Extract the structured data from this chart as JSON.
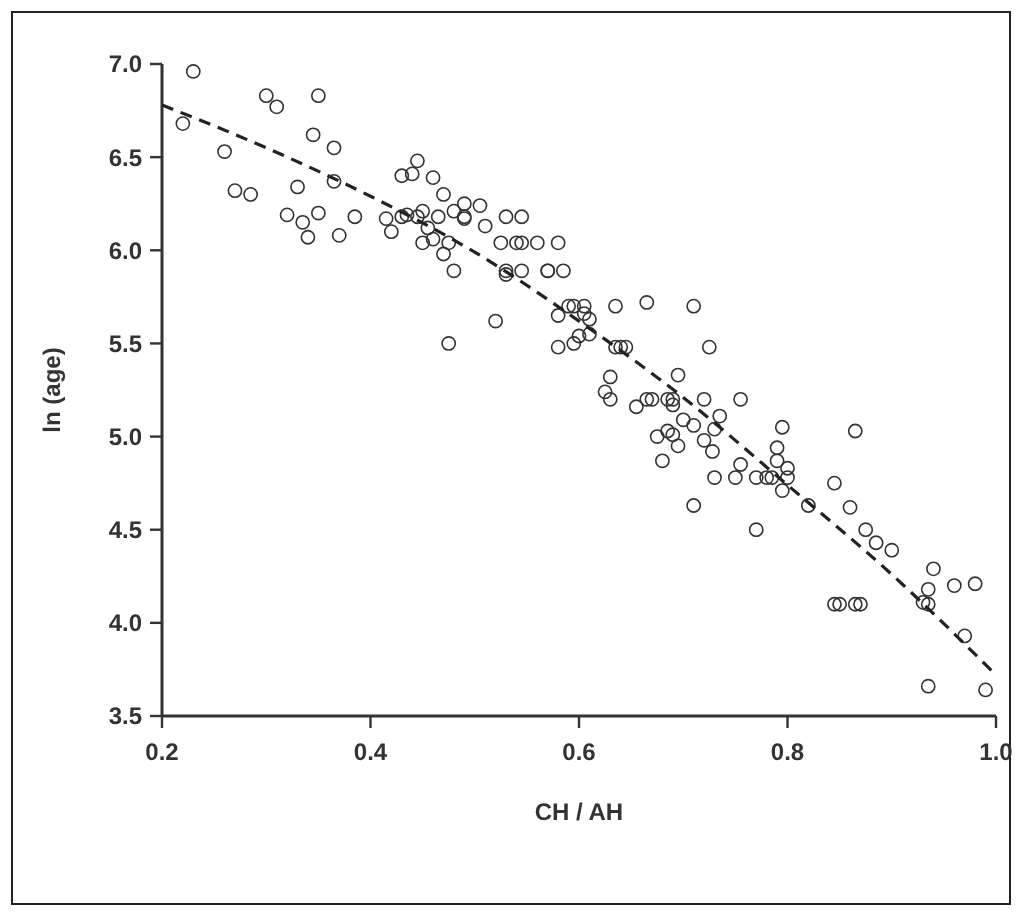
{
  "chart_data": {
    "type": "scatter",
    "xlabel": "CH / AH",
    "ylabel": "ln (age)",
    "xlim": [
      0.2,
      1.0
    ],
    "ylim": [
      3.5,
      7.0
    ],
    "xticks": [
      {
        "value": 0.2,
        "label": "0.2"
      },
      {
        "value": 0.4,
        "label": "0.4"
      },
      {
        "value": 0.6,
        "label": "0.6"
      },
      {
        "value": 0.8,
        "label": "0.8"
      },
      {
        "value": 1.0,
        "label": "1.0"
      }
    ],
    "yticks": [
      {
        "value": 3.5,
        "label": "3.5"
      },
      {
        "value": 4.0,
        "label": "4.0"
      },
      {
        "value": 4.5,
        "label": "4.5"
      },
      {
        "value": 5.0,
        "label": "5.0"
      },
      {
        "value": 5.5,
        "label": "5.5"
      },
      {
        "value": 6.0,
        "label": "6.0"
      },
      {
        "value": 6.5,
        "label": "6.5"
      },
      {
        "value": 7.0,
        "label": "7.0"
      }
    ],
    "grid": false,
    "series": [
      {
        "marker": "circle",
        "color": "#333333",
        "x": [
          0.22,
          0.23,
          0.26,
          0.27,
          0.285,
          0.3,
          0.31,
          0.32,
          0.33,
          0.335,
          0.34,
          0.345,
          0.35,
          0.35,
          0.365,
          0.365,
          0.37,
          0.385,
          0.415,
          0.42,
          0.43,
          0.43,
          0.435,
          0.44,
          0.445,
          0.445,
          0.45,
          0.45,
          0.455,
          0.46,
          0.46,
          0.465,
          0.47,
          0.47,
          0.475,
          0.475,
          0.48,
          0.48,
          0.49,
          0.49,
          0.49,
          0.505,
          0.51,
          0.52,
          0.525,
          0.53,
          0.53,
          0.53,
          0.54,
          0.545,
          0.545,
          0.545,
          0.56,
          0.57,
          0.57,
          0.58,
          0.58,
          0.58,
          0.585,
          0.59,
          0.595,
          0.595,
          0.6,
          0.605,
          0.605,
          0.61,
          0.61,
          0.625,
          0.63,
          0.63,
          0.635,
          0.635,
          0.64,
          0.645,
          0.655,
          0.665,
          0.665,
          0.67,
          0.675,
          0.68,
          0.685,
          0.685,
          0.69,
          0.69,
          0.69,
          0.695,
          0.695,
          0.7,
          0.71,
          0.71,
          0.71,
          0.72,
          0.72,
          0.725,
          0.728,
          0.73,
          0.73,
          0.735,
          0.75,
          0.755,
          0.755,
          0.77,
          0.77,
          0.78,
          0.785,
          0.79,
          0.79,
          0.795,
          0.795,
          0.8,
          0.8,
          0.82,
          0.845,
          0.845,
          0.85,
          0.86,
          0.865,
          0.865,
          0.87,
          0.875,
          0.885,
          0.9,
          0.93,
          0.935,
          0.935,
          0.935,
          0.94,
          0.96,
          0.97,
          0.98,
          0.99
        ],
        "values": [
          6.68,
          6.96,
          6.53,
          6.32,
          6.3,
          6.83,
          6.77,
          6.19,
          6.34,
          6.15,
          6.07,
          6.62,
          6.83,
          6.2,
          6.55,
          6.37,
          6.08,
          6.18,
          6.17,
          6.1,
          6.4,
          6.18,
          6.19,
          6.41,
          6.18,
          6.48,
          6.04,
          6.21,
          6.12,
          6.06,
          6.39,
          6.18,
          6.3,
          5.98,
          5.5,
          6.04,
          5.89,
          6.21,
          6.25,
          6.18,
          6.17,
          6.24,
          6.13,
          5.62,
          6.04,
          6.18,
          5.89,
          5.87,
          6.04,
          6.04,
          5.89,
          6.18,
          6.04,
          5.89,
          5.89,
          6.04,
          5.65,
          5.48,
          5.89,
          5.7,
          5.7,
          5.5,
          5.54,
          5.7,
          5.66,
          5.55,
          5.63,
          5.24,
          5.2,
          5.32,
          5.48,
          5.7,
          5.48,
          5.48,
          5.16,
          5.72,
          5.2,
          5.2,
          5.0,
          4.87,
          5.03,
          5.2,
          5.17,
          5.2,
          5.01,
          4.95,
          5.33,
          5.09,
          5.06,
          5.7,
          4.63,
          4.98,
          5.2,
          5.48,
          4.92,
          4.78,
          5.04,
          5.11,
          4.78,
          5.2,
          4.85,
          4.5,
          4.78,
          4.78,
          4.78,
          4.94,
          4.87,
          4.71,
          5.05,
          4.83,
          4.78,
          4.63,
          4.75,
          4.1,
          4.1,
          4.62,
          5.03,
          4.1,
          4.1,
          4.5,
          4.43,
          4.39,
          4.11,
          4.18,
          4.1,
          3.66,
          4.29,
          4.2,
          3.93,
          4.21,
          3.64
        ]
      },
      {
        "type": "line",
        "line_style": "dashed",
        "color": "#222222",
        "x": [
          0.2,
          0.3,
          0.4,
          0.5,
          0.6,
          0.7,
          0.8,
          0.9,
          1.0
        ],
        "values": [
          6.78,
          6.55,
          6.29,
          5.99,
          5.62,
          5.21,
          4.74,
          4.26,
          3.72
        ]
      }
    ]
  }
}
